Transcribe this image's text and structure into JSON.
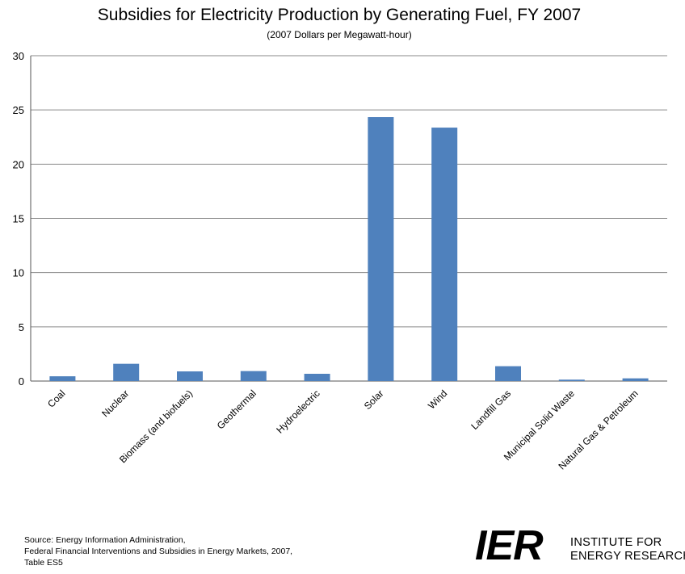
{
  "chart_data": {
    "type": "bar",
    "title": "Subsidies for Electricity Production by Generating Fuel, FY 2007",
    "subtitle": "(2007 Dollars per Megawatt-hour)",
    "xlabel": "",
    "ylabel": "",
    "ylim": [
      0,
      30
    ],
    "yticks": [
      "0",
      "5",
      "10",
      "15",
      "20",
      "25",
      "30"
    ],
    "grid": true,
    "legend": "none",
    "bar_color": "#4f81bd",
    "categories": [
      "Coal",
      "Nuclear",
      "Biomass (and biofuels)",
      "Geothermal",
      "Hydroelectric",
      "Solar",
      "Wind",
      "Landfill Gas",
      "Municipal Solid Waste",
      "Natural Gas & Petroleum"
    ],
    "values": [
      0.44,
      1.59,
      0.89,
      0.92,
      0.67,
      24.34,
      23.37,
      1.37,
      0.13,
      0.25
    ]
  },
  "source": {
    "line1": "Source: Energy Information Administration,",
    "line2": "Federal Financial Interventions and Subsidies in Energy Markets, 2007,",
    "line3": "Table ES5"
  },
  "logo": {
    "mark": "IER",
    "line1": "INSTITUTE FOR",
    "line2": "ENERGY RESEARCH"
  }
}
